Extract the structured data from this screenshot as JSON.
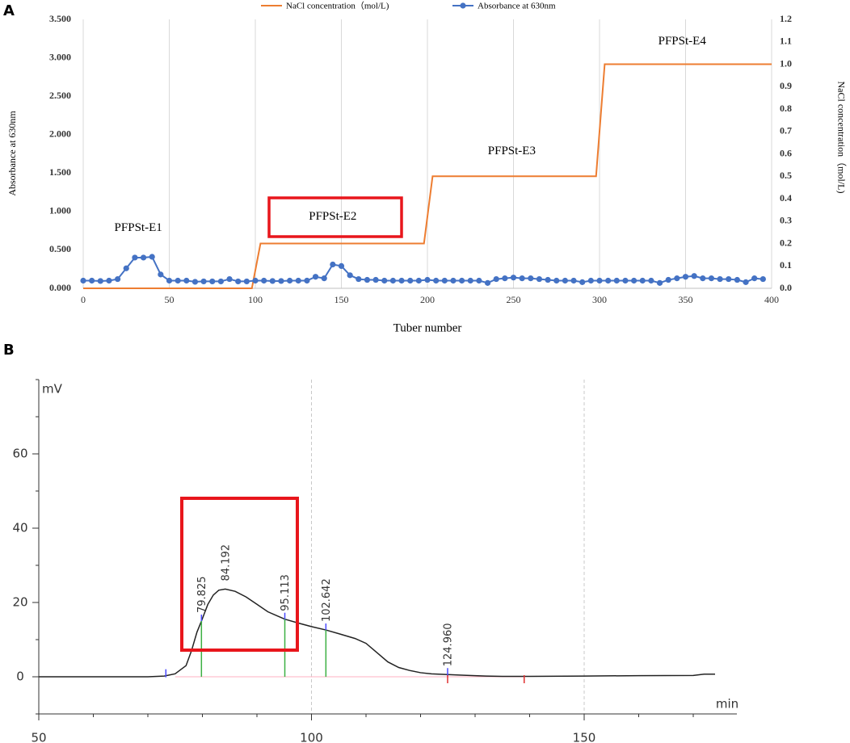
{
  "chart_data": [
    {
      "type": "line",
      "label": "A",
      "x_label": "Tuber number",
      "y_label": "Absorbance at 630nm",
      "y2_label": "NaCl concentration（mol/L)",
      "legend": "top",
      "grid": "x",
      "xlim": [
        0,
        400
      ],
      "xticks": [
        0,
        50,
        100,
        150,
        200,
        250,
        300,
        350,
        400
      ],
      "ylim": [
        0,
        3.5
      ],
      "yticks": [
        {
          "value": 0,
          "label": "0.000"
        },
        {
          "value": 0.5,
          "label": "0.500"
        },
        {
          "value": 1,
          "label": "1.000"
        },
        {
          "value": 1.5,
          "label": "1.500"
        },
        {
          "value": 2,
          "label": "2.000"
        },
        {
          "value": 2.5,
          "label": "2.500"
        },
        {
          "value": 3,
          "label": "3.000"
        },
        {
          "value": 3.5,
          "label": "3.500"
        }
      ],
      "y2lim": [
        0,
        1.2
      ],
      "y2ticks": [
        {
          "value": 0,
          "label": "0.0"
        },
        {
          "value": 0.1,
          "label": "0.1"
        },
        {
          "value": 0.2,
          "label": "0.2"
        },
        {
          "value": 0.3,
          "label": "0.3"
        },
        {
          "value": 0.4,
          "label": "0.4"
        },
        {
          "value": 0.5,
          "label": "0.5"
        },
        {
          "value": 0.6,
          "label": "0.6"
        },
        {
          "value": 0.7,
          "label": "0.7"
        },
        {
          "value": 0.8,
          "label": "0.8"
        },
        {
          "value": 0.9,
          "label": "0.9"
        },
        {
          "value": 1,
          "label": "1.0"
        },
        {
          "value": 1.1,
          "label": "1.1"
        },
        {
          "value": 1.2,
          "label": "1.2"
        }
      ],
      "series": [
        {
          "name": "NaCl concentration（mol/L)",
          "color": "#ed7d31",
          "axis": "y2",
          "markers": false,
          "x": [
            0,
            98,
            103,
            198,
            203,
            298,
            303,
            400
          ],
          "values": [
            0,
            0,
            0.2,
            0.2,
            0.5,
            0.5,
            1,
            1
          ]
        },
        {
          "name": "Absorbance at 630nm",
          "color": "#4472c4",
          "axis": "y",
          "markers": true,
          "x": [
            0,
            5,
            10,
            15,
            20,
            25,
            30,
            35,
            40,
            45,
            50,
            55,
            60,
            65,
            70,
            75,
            80,
            85,
            90,
            95,
            100,
            105,
            110,
            115,
            120,
            125,
            130,
            135,
            140,
            145,
            150,
            155,
            160,
            165,
            170,
            175,
            180,
            185,
            190,
            195,
            200,
            205,
            210,
            215,
            220,
            225,
            230,
            235,
            240,
            245,
            250,
            255,
            260,
            265,
            270,
            275,
            280,
            285,
            290,
            295,
            300,
            305,
            310,
            315,
            320,
            325,
            330,
            335,
            340,
            345,
            350,
            355,
            360,
            365,
            370,
            375,
            380,
            385,
            390,
            395
          ],
          "values": [
            0.1,
            0.1,
            0.095,
            0.1,
            0.12,
            0.26,
            0.4,
            0.4,
            0.41,
            0.18,
            0.1,
            0.1,
            0.1,
            0.085,
            0.09,
            0.09,
            0.09,
            0.12,
            0.09,
            0.09,
            0.1,
            0.1,
            0.095,
            0.095,
            0.1,
            0.1,
            0.1,
            0.15,
            0.13,
            0.31,
            0.29,
            0.17,
            0.12,
            0.11,
            0.11,
            0.1,
            0.1,
            0.1,
            0.1,
            0.1,
            0.11,
            0.1,
            0.1,
            0.1,
            0.1,
            0.1,
            0.1,
            0.07,
            0.12,
            0.13,
            0.14,
            0.13,
            0.13,
            0.12,
            0.11,
            0.1,
            0.1,
            0.1,
            0.08,
            0.1,
            0.1,
            0.1,
            0.1,
            0.1,
            0.1,
            0.1,
            0.1,
            0.07,
            0.11,
            0.13,
            0.15,
            0.16,
            0.13,
            0.13,
            0.12,
            0.12,
            0.11,
            0.08,
            0.13,
            0.12
          ]
        }
      ],
      "annotations": [
        {
          "text": "PFPSt-E1",
          "x": 32,
          "y": 0.78
        },
        {
          "text": "PFPSt-E2",
          "x": 145,
          "y": 0.93
        },
        {
          "text": "PFPSt-E3",
          "x": 249,
          "y": 1.78
        },
        {
          "text": "PFPSt-E4",
          "x": 348,
          "y": 3.21
        }
      ]
    },
    {
      "type": "line",
      "label": "B",
      "x_label": "min",
      "y_label": "mV",
      "grid": "x",
      "xlim": [
        50,
        178
      ],
      "xticks": [
        50,
        100,
        150
      ],
      "ylim": [
        -10,
        80
      ],
      "yticks": [
        0,
        20,
        40,
        60
      ],
      "series": [
        {
          "color": "#222222",
          "x": [
            50,
            70,
            73,
            75,
            77,
            78,
            79,
            79.825,
            81,
            82,
            83,
            84.192,
            86,
            88,
            90,
            92,
            95.113,
            98,
            100,
            102.642,
            105,
            108,
            110,
            112,
            114,
            116,
            118,
            120,
            122,
            124.96,
            128,
            132,
            135,
            140,
            150,
            160,
            170,
            172,
            174
          ],
          "values": [
            0,
            0,
            0.2,
            0.8,
            3,
            7,
            12,
            15,
            19.5,
            22,
            23.3,
            23.6,
            23,
            21.5,
            19.5,
            17.5,
            15.5,
            14.3,
            13.5,
            12.6,
            11.6,
            10.3,
            9,
            6.5,
            4,
            2.5,
            1.7,
            1.1,
            0.8,
            0.6,
            0.4,
            0.2,
            0.1,
            0.1,
            0.2,
            0.3,
            0.35,
            0.7,
            0.7
          ]
        }
      ],
      "peaks": [
        79.825,
        84.192,
        95.113,
        102.642,
        124.96
      ],
      "peak_labels": [
        "79.825",
        "84.192",
        "95.113",
        "102.642",
        "124.960"
      ],
      "drop_line_color": "#3cb043",
      "baseline": {
        "x": [
          75,
          139
        ],
        "color": "#ffb0c0"
      },
      "markers": [
        {
          "color": "#4a4aff",
          "x": [
            73.3,
            79.825,
            95.113,
            102.642,
            124.96
          ]
        },
        {
          "color": "#e03030",
          "x": [
            124.96,
            139
          ]
        }
      ]
    }
  ]
}
